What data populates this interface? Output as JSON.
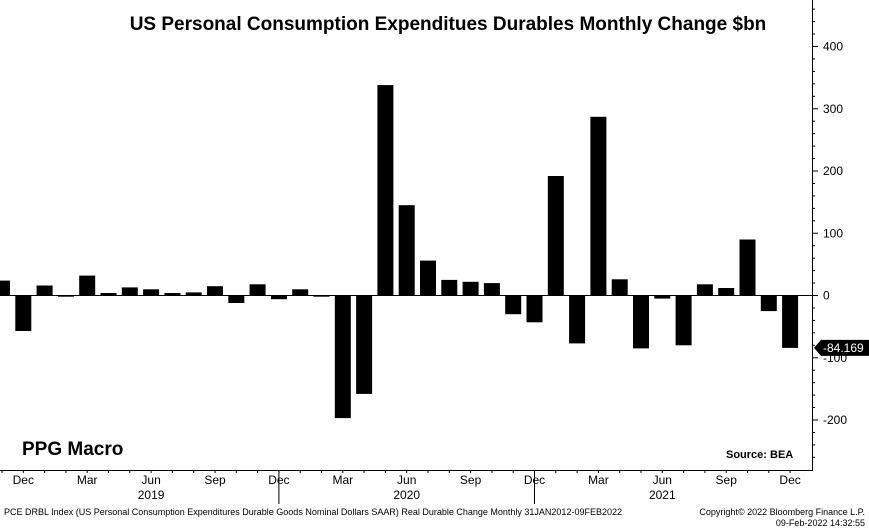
{
  "chart_data": {
    "type": "bar",
    "title": "US Personal Consumption Expenditues Durables Monthly Change $bn",
    "xlabel": "",
    "ylabel": "",
    "ylim": [
      -280,
      470
    ],
    "yticks": [
      -200,
      -100,
      0,
      100,
      200,
      300,
      400
    ],
    "ytick_labels": [
      "-200",
      "-100",
      "0",
      "100",
      "200",
      "300",
      "400"
    ],
    "y_axis_side": "right",
    "categories": [
      "Nov 2018",
      "Dec 2018",
      "Jan 2019",
      "Feb 2019",
      "Mar 2019",
      "Apr 2019",
      "May 2019",
      "Jun 2019",
      "Jul 2019",
      "Aug 2019",
      "Sep 2019",
      "Oct 2019",
      "Nov 2019",
      "Dec 2019",
      "Jan 2020",
      "Feb 2020",
      "Mar 2020",
      "Apr 2020",
      "May 2020",
      "Jun 2020",
      "Jul 2020",
      "Aug 2020",
      "Sep 2020",
      "Oct 2020",
      "Nov 2020",
      "Dec 2020",
      "Jan 2021",
      "Feb 2021",
      "Mar 2021",
      "Apr 2021",
      "May 2021",
      "Jun 2021",
      "Jul 2021",
      "Aug 2021",
      "Sep 2021",
      "Oct 2021",
      "Nov 2021",
      "Dec 2021"
    ],
    "values": [
      24,
      -57,
      16,
      -2,
      32,
      4,
      13,
      10,
      4,
      5,
      15,
      -12,
      18,
      -6,
      10,
      -2,
      -197,
      -158,
      338,
      145,
      56,
      25,
      22,
      20,
      -30,
      -43,
      192,
      -77,
      287,
      26,
      -85,
      -5,
      -80,
      18,
      12,
      90,
      -25,
      -84.169
    ],
    "last_value_label": "-84.169",
    "x_month_labels": [
      {
        "index": 1,
        "label": "Dec"
      },
      {
        "index": 4,
        "label": "Mar"
      },
      {
        "index": 7,
        "label": "Jun"
      },
      {
        "index": 10,
        "label": "Sep"
      },
      {
        "index": 13,
        "label": "Dec"
      },
      {
        "index": 16,
        "label": "Mar"
      },
      {
        "index": 19,
        "label": "Jun"
      },
      {
        "index": 22,
        "label": "Sep"
      },
      {
        "index": 25,
        "label": "Dec"
      },
      {
        "index": 28,
        "label": "Mar"
      },
      {
        "index": 31,
        "label": "Jun"
      },
      {
        "index": 34,
        "label": "Sep"
      },
      {
        "index": 37,
        "label": "Dec"
      }
    ],
    "x_year_labels": [
      {
        "center_index": 7,
        "label": "2019"
      },
      {
        "center_index": 19,
        "label": "2020"
      },
      {
        "center_index": 31,
        "label": "2021"
      }
    ],
    "year_divider_indices": [
      13,
      25
    ],
    "bar_color": "#000000"
  },
  "annotations": {
    "watermark": "PPG Macro",
    "source": "Source: BEA"
  },
  "footer": {
    "description": "PCE DRBL Index (US Personal Consumption Expenditures Durable Goods Nominal Dollars SAAR) Real Durable Change  Monthly 31JAN2012-09FEB2022",
    "copyright": "Copyright© 2022 Bloomberg Finance L.P.",
    "timestamp": "09-Feb-2022 14:32:55"
  }
}
